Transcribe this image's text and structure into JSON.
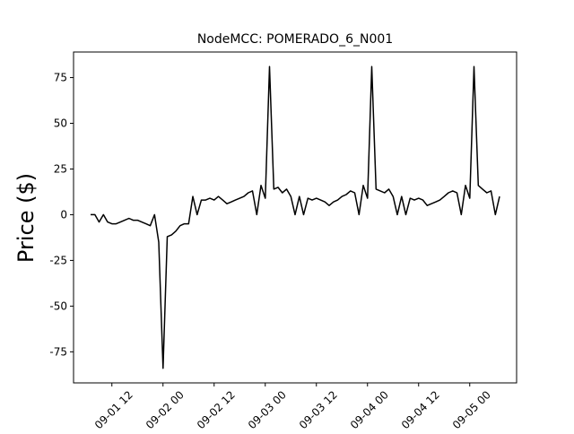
{
  "chart_data": {
    "type": "line",
    "title": "NodeMCC: POMERADO_6_N001",
    "y_label": "Price ($)",
    "color": "#000000",
    "x": [
      "09-01 07",
      "09-01 08",
      "09-01 09",
      "09-01 10",
      "09-01 11",
      "09-01 12",
      "09-01 13",
      "09-01 14",
      "09-01 15",
      "09-01 16",
      "09-01 17",
      "09-01 18",
      "09-01 19",
      "09-01 20",
      "09-01 21",
      "09-01 22",
      "09-01 23",
      "09-02 00",
      "09-02 01",
      "09-02 02",
      "09-02 03",
      "09-02 04",
      "09-02 05",
      "09-02 06",
      "09-02 07",
      "09-02 08",
      "09-02 09",
      "09-02 10",
      "09-02 11",
      "09-02 12",
      "09-02 13",
      "09-02 14",
      "09-02 15",
      "09-02 16",
      "09-02 17",
      "09-02 18",
      "09-02 19",
      "09-02 20",
      "09-02 21",
      "09-02 22",
      "09-02 23",
      "09-03 00",
      "09-03 01",
      "09-03 02",
      "09-03 03",
      "09-03 04",
      "09-03 05",
      "09-03 06",
      "09-03 07",
      "09-03 08",
      "09-03 09",
      "09-03 10",
      "09-03 11",
      "09-03 12",
      "09-03 13",
      "09-03 14",
      "09-03 15",
      "09-03 16",
      "09-03 17",
      "09-03 18",
      "09-03 19",
      "09-03 20",
      "09-03 21",
      "09-03 22",
      "09-03 23",
      "09-04 00",
      "09-04 01",
      "09-04 02",
      "09-04 03",
      "09-04 04",
      "09-04 05",
      "09-04 06",
      "09-04 07",
      "09-04 08",
      "09-04 09",
      "09-04 10",
      "09-04 11",
      "09-04 12",
      "09-04 13",
      "09-04 14",
      "09-04 15",
      "09-04 16",
      "09-04 17",
      "09-04 18",
      "09-04 19",
      "09-04 20",
      "09-04 21",
      "09-04 22",
      "09-04 23",
      "09-05 00",
      "09-05 01",
      "09-05 02",
      "09-05 03",
      "09-05 04",
      "09-05 05",
      "09-05 06",
      "09-05 07"
    ],
    "values": [
      0,
      0,
      -4,
      0,
      -4,
      -5,
      -5,
      -4,
      -3,
      -2,
      -3,
      -3,
      -4,
      -5,
      -6,
      0,
      -15,
      -84,
      -12,
      -11,
      -9,
      -6,
      -5,
      -5,
      10,
      0,
      8,
      8,
      9,
      8,
      10,
      8,
      6,
      7,
      8,
      9,
      10,
      12,
      13,
      0,
      16,
      9,
      81,
      14,
      15,
      12,
      14,
      10,
      0,
      10,
      0,
      9,
      8,
      9,
      8,
      7,
      5,
      7,
      8,
      10,
      11,
      13,
      12,
      0,
      16,
      9,
      81,
      14,
      13,
      12,
      14,
      10,
      0,
      10,
      0,
      9,
      8,
      9,
      8,
      5,
      6,
      7,
      8,
      10,
      12,
      13,
      12,
      0,
      16,
      9,
      81,
      16,
      14,
      12,
      13,
      0,
      10
    ],
    "xlim": [
      "09-01 03",
      "09-05 11"
    ],
    "xticks": [
      "09-01 12",
      "09-02 00",
      "09-02 12",
      "09-03 00",
      "09-03 12",
      "09-04 00",
      "09-04 12",
      "09-05 00"
    ],
    "ylim": [
      -92,
      89
    ],
    "yticks": [
      -75,
      -50,
      -25,
      0,
      25,
      50,
      75
    ]
  }
}
